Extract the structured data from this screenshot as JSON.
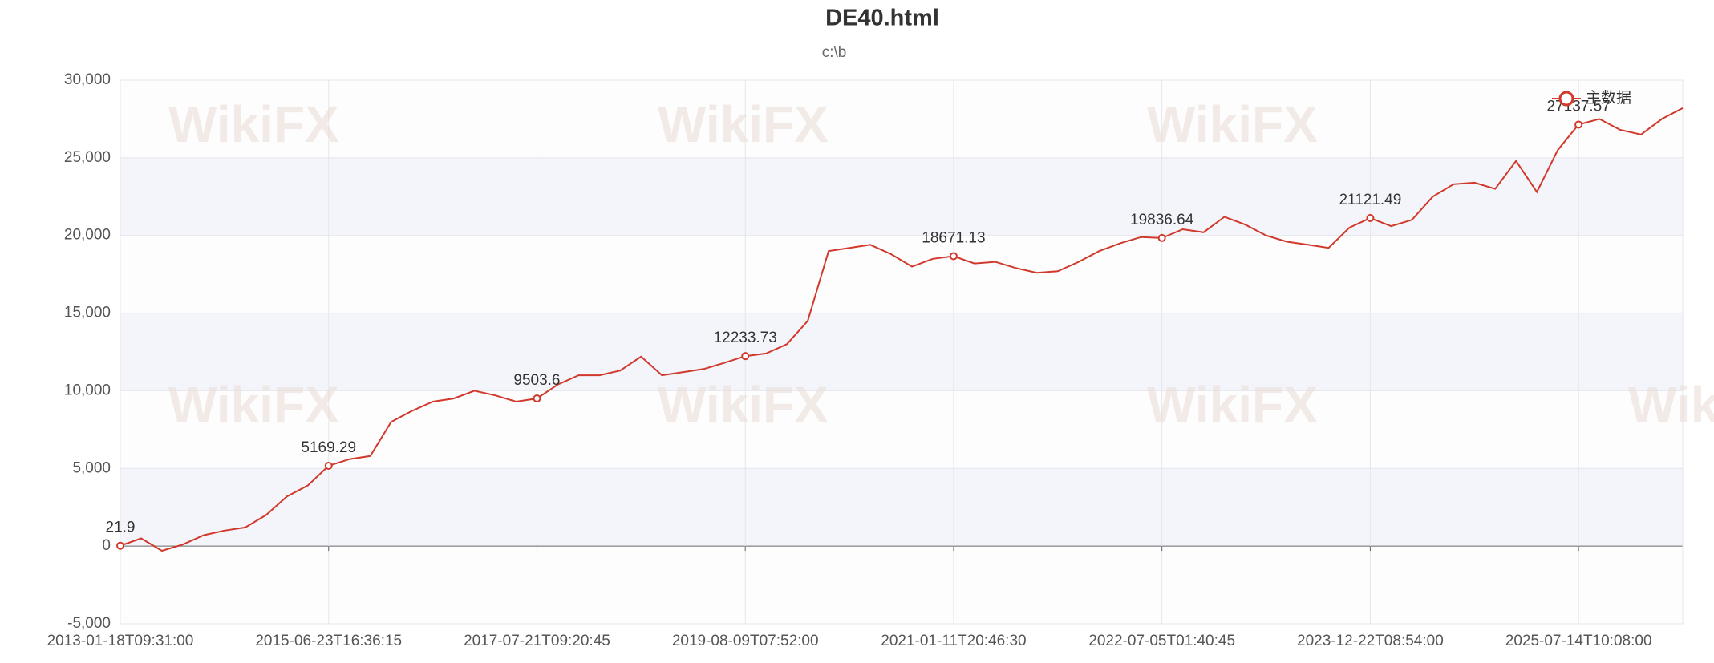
{
  "chart_data": {
    "type": "line",
    "title": "DE40.html",
    "subtitle": "c:\\b",
    "watermark": "WikiFX",
    "categories": [
      "2013-01-18T09:31:00",
      null,
      null,
      null,
      null,
      null,
      null,
      null,
      null,
      null,
      "2015-06-23T16:36:15",
      null,
      null,
      null,
      null,
      null,
      null,
      null,
      null,
      null,
      "2017-07-21T09:20:45",
      null,
      null,
      null,
      null,
      null,
      null,
      null,
      null,
      null,
      "2019-08-09T07:52:00",
      null,
      null,
      null,
      null,
      null,
      null,
      null,
      null,
      null,
      "2021-01-11T20:46:30",
      null,
      null,
      null,
      null,
      null,
      null,
      null,
      null,
      null,
      "2022-07-05T01:40:45",
      null,
      null,
      null,
      null,
      null,
      null,
      null,
      null,
      null,
      "2023-12-22T08:54:00",
      null,
      null,
      null,
      null,
      null,
      null,
      null,
      null,
      null,
      "2025-07-14T10:08:00",
      null,
      null,
      null,
      null,
      null
    ],
    "series": [
      {
        "name": "主数据",
        "color": "#d0392b",
        "values": [
          21.9,
          500,
          -300,
          100,
          700,
          1000,
          1200,
          2000,
          3200,
          3900,
          5169.29,
          5600,
          5800,
          8000,
          8700,
          9300,
          9500,
          10000,
          9700,
          9300,
          9503.6,
          10400,
          11000,
          11000,
          11300,
          12200,
          11000,
          11200,
          11400,
          11800,
          12233.73,
          12400,
          13000,
          14500,
          19000,
          19200,
          19400,
          18800,
          18000,
          18500,
          18671.13,
          18200,
          18300,
          17900,
          17600,
          17700,
          18300,
          19000,
          19500,
          19900,
          19836.64,
          20400,
          20200,
          21200,
          20700,
          20000,
          19600,
          19400,
          19200,
          20500,
          21121.49,
          20600,
          21000,
          22500,
          23300,
          23400,
          23000,
          24800,
          22800,
          25500,
          27137.57,
          27500,
          26800,
          26500,
          27500,
          28200
        ]
      }
    ],
    "ylim": [
      -5000,
      30000
    ],
    "yticks": [
      {
        "value": -5000,
        "label": "-5,000"
      },
      0,
      {
        "value": 5000,
        "label": "5,000"
      },
      {
        "value": 10000,
        "label": "10,000"
      },
      {
        "value": 15000,
        "label": "15,000"
      },
      {
        "value": 20000,
        "label": "20,000"
      },
      {
        "value": 25000,
        "label": "25,000"
      },
      {
        "value": 30000,
        "label": "30,000"
      }
    ],
    "grid": true,
    "legend": "top-right"
  }
}
